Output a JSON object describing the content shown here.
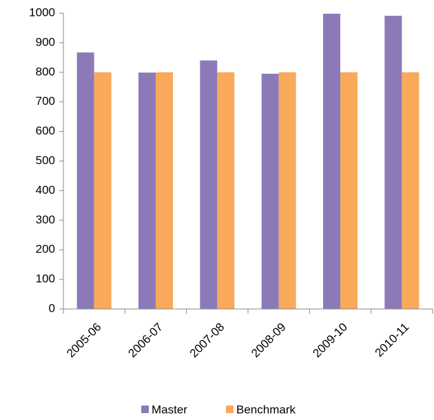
{
  "chart_data": {
    "type": "bar",
    "categories": [
      "2005-06",
      "2006-07",
      "2007-08",
      "2008-09",
      "2009-10",
      "2010-11"
    ],
    "series": [
      {
        "name": "Master",
        "color": "#8c7ab8",
        "values": [
          867,
          799,
          840,
          795,
          998,
          991
        ]
      },
      {
        "name": "Benchmark",
        "color": "#f8a95a",
        "values": [
          800,
          800,
          800,
          800,
          800,
          800
        ]
      }
    ],
    "ylim": [
      0,
      1000
    ],
    "yticks": [
      0,
      100,
      200,
      300,
      400,
      500,
      600,
      700,
      800,
      900,
      1000
    ],
    "grid": false,
    "legend": "bottom"
  }
}
